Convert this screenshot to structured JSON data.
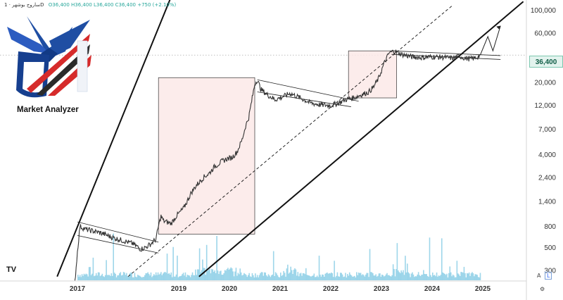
{
  "header": {
    "symbol": "ساروج بوشهر · 1D",
    "ohlc": "O36,400 H36,400 L36,400 C36,400 +750 (+2.10%)"
  },
  "brand": {
    "name": "Market Analyzer",
    "logo_icon": "eagle-logo-icon"
  },
  "colors": {
    "candles": "#333333",
    "channel": "#111111",
    "box_fill": "#fbe9e7",
    "volume": "#7ec8e3",
    "current_price": "#7dc8b0"
  },
  "chart_data": {
    "type": "candlestick",
    "scale": "log",
    "y_ticks": [
      300,
      500,
      800,
      1400,
      2400,
      4000,
      7000,
      12000,
      20000,
      36400,
      60000,
      100000
    ],
    "y_tick_labels": [
      "300",
      "500",
      "800",
      "1,400",
      "2,400",
      "4,000",
      "7,000",
      "12,000",
      "20,000",
      "36,400",
      "60,000",
      "100,000"
    ],
    "x_ticks": [
      2017,
      2019,
      2020,
      2021,
      2022,
      2023,
      2024,
      2025
    ],
    "current_price": 36400,
    "current_price_label": "36,400",
    "price_path": [
      [
        2016.95,
        230
      ],
      [
        2017.0,
        450
      ],
      [
        2017.05,
        800
      ],
      [
        2017.15,
        750
      ],
      [
        2017.3,
        720
      ],
      [
        2017.5,
        680
      ],
      [
        2017.7,
        620
      ],
      [
        2017.9,
        580
      ],
      [
        2018.1,
        540
      ],
      [
        2018.25,
        480
      ],
      [
        2018.35,
        500
      ],
      [
        2018.45,
        540
      ],
      [
        2018.55,
        600
      ],
      [
        2018.6,
        800
      ],
      [
        2018.65,
        1000
      ],
      [
        2018.7,
        900
      ],
      [
        2018.85,
        850
      ],
      [
        2018.95,
        1000
      ],
      [
        2019.1,
        1200
      ],
      [
        2019.25,
        1700
      ],
      [
        2019.35,
        2000
      ],
      [
        2019.5,
        2400
      ],
      [
        2019.6,
        2600
      ],
      [
        2019.7,
        3000
      ],
      [
        2019.85,
        3400
      ],
      [
        2019.95,
        3600
      ],
      [
        2020.05,
        3700
      ],
      [
        2020.15,
        4200
      ],
      [
        2020.25,
        5500
      ],
      [
        2020.32,
        7500
      ],
      [
        2020.38,
        9000
      ],
      [
        2020.45,
        14000
      ],
      [
        2020.5,
        19000
      ],
      [
        2020.55,
        21000
      ],
      [
        2020.62,
        17000
      ],
      [
        2020.75,
        15000
      ],
      [
        2020.9,
        13500
      ],
      [
        2021.0,
        14000
      ],
      [
        2021.2,
        15500
      ],
      [
        2021.4,
        14000
      ],
      [
        2021.6,
        12500
      ],
      [
        2021.8,
        12000
      ],
      [
        2022.0,
        11800
      ],
      [
        2022.15,
        12500
      ],
      [
        2022.3,
        13500
      ],
      [
        2022.45,
        14000
      ],
      [
        2022.6,
        15000
      ],
      [
        2022.75,
        16000
      ],
      [
        2022.85,
        18000
      ],
      [
        2022.95,
        22000
      ],
      [
        2023.05,
        30000
      ],
      [
        2023.15,
        38000
      ],
      [
        2023.25,
        40000
      ],
      [
        2023.4,
        37000
      ],
      [
        2023.6,
        35000
      ],
      [
        2023.8,
        34500
      ],
      [
        2024.0,
        35000
      ],
      [
        2024.2,
        34800
      ],
      [
        2024.4,
        34000
      ],
      [
        2024.55,
        35500
      ],
      [
        2024.65,
        34000
      ],
      [
        2024.75,
        33500
      ],
      [
        2024.85,
        34000
      ],
      [
        2024.95,
        36400
      ]
    ],
    "projection": [
      [
        2024.95,
        36400
      ],
      [
        2025.1,
        55000
      ],
      [
        2025.2,
        40000
      ],
      [
        2025.35,
        70000
      ]
    ],
    "channel_lines": [
      {
        "from": [
          2016.6,
          260
        ],
        "to": [
          2020.8,
          30000000
        ],
        "style": "solid"
      },
      {
        "from": [
          2019.4,
          260
        ],
        "to": [
          2025.8,
          120000
        ],
        "style": "solid"
      },
      {
        "from": [
          2018.0,
          260
        ],
        "to": [
          2024.4,
          110000
        ],
        "style": "dashed"
      }
    ],
    "boxes": [
      {
        "x0": 2018.6,
        "x1": 2020.5,
        "y0": 670,
        "y1": 22000
      },
      {
        "x0": 2022.35,
        "x1": 2023.3,
        "y0": 14000,
        "y1": 40000
      }
    ],
    "patterns": [
      {
        "upper": [
          [
            2017.0,
            880
          ],
          [
            2018.6,
            560
          ]
        ],
        "lower": [
          [
            2017.0,
            650
          ],
          [
            2018.6,
            440
          ]
        ]
      },
      {
        "upper": [
          [
            2020.55,
            21000
          ],
          [
            2022.55,
            13000
          ]
        ],
        "lower": [
          [
            2020.55,
            16000
          ],
          [
            2022.4,
            11500
          ]
        ]
      },
      {
        "upper": [
          [
            2023.2,
            40000
          ],
          [
            2025.35,
            36000
          ]
        ],
        "lower": [
          [
            2023.2,
            37000
          ],
          [
            2025.35,
            33000
          ]
        ]
      }
    ]
  },
  "axis_buttons": {
    "auto": "A",
    "log": "L"
  },
  "tv_logo": "TV"
}
